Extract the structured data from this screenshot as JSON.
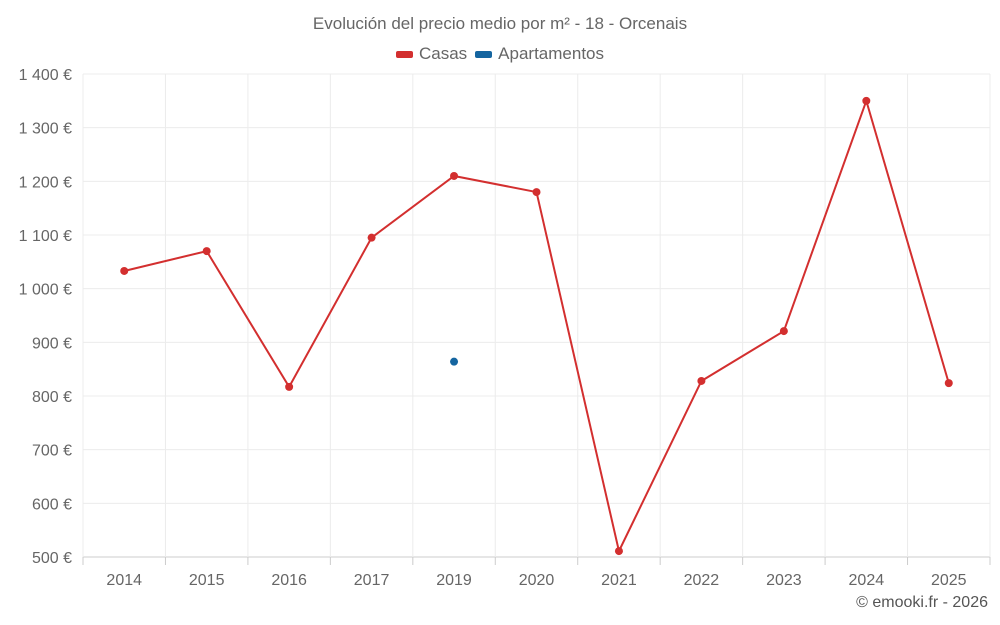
{
  "title": "Evolución del precio medio por m² - 18 - Orcenais",
  "credit": "© emooki.fr - 2026",
  "legend": [
    {
      "label": "Casas",
      "color": "#d32f2f"
    },
    {
      "label": "Apartamentos",
      "color": "#1565a0"
    }
  ],
  "chart_data": {
    "type": "line",
    "title": "Evolución del precio medio por m² - 18 - Orcenais",
    "categories": [
      "2014",
      "2015",
      "2016",
      "2017",
      "2019",
      "2020",
      "2021",
      "2022",
      "2023",
      "2024",
      "2025"
    ],
    "ylim": [
      500,
      1400
    ],
    "yticks": [
      500,
      600,
      700,
      800,
      900,
      1000,
      1100,
      1200,
      1300,
      1400
    ],
    "ytick_labels": [
      "500 €",
      "600 €",
      "700 €",
      "800 €",
      "900 €",
      "1 000 €",
      "1 100 €",
      "1 200 €",
      "1 300 €",
      "1 400 €"
    ],
    "grid": true,
    "legend_position": "top-center",
    "series": [
      {
        "name": "Casas",
        "color": "#d32f2f",
        "values": [
          1033,
          1070,
          817,
          1095,
          1210,
          1180,
          511,
          828,
          921,
          1350,
          824
        ]
      },
      {
        "name": "Apartamentos",
        "color": "#1565a0",
        "values": [
          null,
          null,
          null,
          null,
          864,
          null,
          null,
          null,
          null,
          null,
          null
        ]
      }
    ]
  }
}
